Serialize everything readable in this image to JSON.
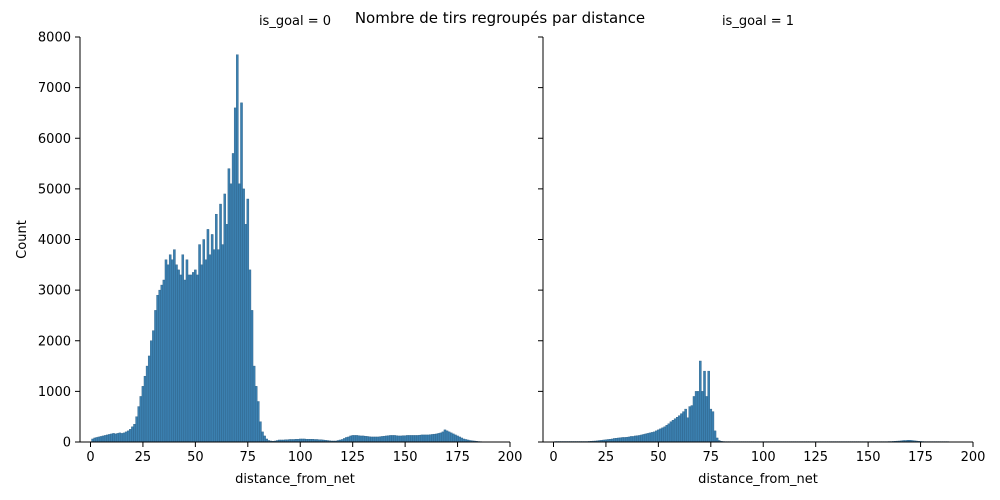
{
  "suptitle": "Nombre de tirs regroupés par distance",
  "colors": {
    "bar_fill": "#3b80b0",
    "bar_edge": "#2c5f86",
    "axis": "#000000"
  },
  "chart_data": [
    {
      "type": "bar",
      "title": "is_goal = 0",
      "xlabel": "distance_from_net",
      "ylabel": "Count",
      "xlim": [
        -5,
        200
      ],
      "ylim": [
        0,
        8000
      ],
      "xticks": [
        "0",
        "25",
        "50",
        "75",
        "100",
        "125",
        "150",
        "175",
        "200"
      ],
      "yticks": [
        "0",
        "1000",
        "2000",
        "3000",
        "4000",
        "5000",
        "6000",
        "7000",
        "8000"
      ],
      "bin_width": 1,
      "points": [
        [
          1,
          60
        ],
        [
          2,
          80
        ],
        [
          3,
          90
        ],
        [
          4,
          100
        ],
        [
          5,
          110
        ],
        [
          6,
          120
        ],
        [
          7,
          130
        ],
        [
          8,
          140
        ],
        [
          9,
          150
        ],
        [
          10,
          160
        ],
        [
          11,
          170
        ],
        [
          12,
          160
        ],
        [
          13,
          170
        ],
        [
          14,
          180
        ],
        [
          15,
          170
        ],
        [
          16,
          180
        ],
        [
          17,
          200
        ],
        [
          18,
          220
        ],
        [
          19,
          250
        ],
        [
          20,
          300
        ],
        [
          21,
          350
        ],
        [
          22,
          500
        ],
        [
          23,
          700
        ],
        [
          24,
          900
        ],
        [
          25,
          1100
        ],
        [
          26,
          1300
        ],
        [
          27,
          1500
        ],
        [
          28,
          1700
        ],
        [
          29,
          2000
        ],
        [
          30,
          2200
        ],
        [
          31,
          2600
        ],
        [
          32,
          2900
        ],
        [
          33,
          3000
        ],
        [
          34,
          3100
        ],
        [
          35,
          3200
        ],
        [
          36,
          3600
        ],
        [
          37,
          3500
        ],
        [
          38,
          3700
        ],
        [
          39,
          3600
        ],
        [
          40,
          3800
        ],
        [
          41,
          3500
        ],
        [
          42,
          3400
        ],
        [
          43,
          3300
        ],
        [
          44,
          3700
        ],
        [
          45,
          3200
        ],
        [
          46,
          3600
        ],
        [
          47,
          3300
        ],
        [
          48,
          3300
        ],
        [
          49,
          3350
        ],
        [
          50,
          3400
        ],
        [
          51,
          3300
        ],
        [
          52,
          3900
        ],
        [
          53,
          3500
        ],
        [
          54,
          4000
        ],
        [
          55,
          3600
        ],
        [
          56,
          4200
        ],
        [
          57,
          3700
        ],
        [
          58,
          4100
        ],
        [
          59,
          3800
        ],
        [
          60,
          4500
        ],
        [
          61,
          3800
        ],
        [
          62,
          4700
        ],
        [
          63,
          3900
        ],
        [
          64,
          4900
        ],
        [
          65,
          4300
        ],
        [
          66,
          5400
        ],
        [
          67,
          5100
        ],
        [
          68,
          5700
        ],
        [
          69,
          6600
        ],
        [
          70,
          7650
        ],
        [
          71,
          5100
        ],
        [
          72,
          6700
        ],
        [
          73,
          5000
        ],
        [
          74,
          4300
        ],
        [
          75,
          4800
        ],
        [
          76,
          3400
        ],
        [
          77,
          2600
        ],
        [
          78,
          1500
        ],
        [
          79,
          1100
        ],
        [
          80,
          800
        ],
        [
          81,
          400
        ],
        [
          82,
          200
        ],
        [
          83,
          120
        ],
        [
          84,
          60
        ],
        [
          85,
          30
        ],
        [
          86,
          20
        ],
        [
          87,
          15
        ],
        [
          88,
          20
        ],
        [
          89,
          30
        ],
        [
          90,
          40
        ],
        [
          91,
          40
        ],
        [
          92,
          40
        ],
        [
          93,
          45
        ],
        [
          94,
          45
        ],
        [
          95,
          50
        ],
        [
          96,
          50
        ],
        [
          97,
          50
        ],
        [
          98,
          55
        ],
        [
          99,
          55
        ],
        [
          100,
          60
        ],
        [
          101,
          60
        ],
        [
          102,
          60
        ],
        [
          103,
          55
        ],
        [
          104,
          55
        ],
        [
          105,
          55
        ],
        [
          106,
          55
        ],
        [
          107,
          50
        ],
        [
          108,
          50
        ],
        [
          109,
          45
        ],
        [
          110,
          45
        ],
        [
          111,
          40
        ],
        [
          112,
          35
        ],
        [
          113,
          30
        ],
        [
          114,
          25
        ],
        [
          115,
          20
        ],
        [
          116,
          20
        ],
        [
          117,
          20
        ],
        [
          118,
          30
        ],
        [
          119,
          40
        ],
        [
          120,
          50
        ],
        [
          121,
          70
        ],
        [
          122,
          90
        ],
        [
          123,
          100
        ],
        [
          124,
          120
        ],
        [
          125,
          130
        ],
        [
          126,
          130
        ],
        [
          127,
          130
        ],
        [
          128,
          125
        ],
        [
          129,
          120
        ],
        [
          130,
          120
        ],
        [
          131,
          115
        ],
        [
          132,
          110
        ],
        [
          133,
          105
        ],
        [
          134,
          100
        ],
        [
          135,
          100
        ],
        [
          136,
          100
        ],
        [
          137,
          100
        ],
        [
          138,
          105
        ],
        [
          139,
          110
        ],
        [
          140,
          115
        ],
        [
          141,
          120
        ],
        [
          142,
          125
        ],
        [
          143,
          130
        ],
        [
          144,
          130
        ],
        [
          145,
          130
        ],
        [
          146,
          125
        ],
        [
          147,
          120
        ],
        [
          148,
          120
        ],
        [
          149,
          125
        ],
        [
          150,
          125
        ],
        [
          151,
          130
        ],
        [
          152,
          130
        ],
        [
          153,
          130
        ],
        [
          154,
          130
        ],
        [
          155,
          130
        ],
        [
          156,
          130
        ],
        [
          157,
          135
        ],
        [
          158,
          140
        ],
        [
          159,
          140
        ],
        [
          160,
          140
        ],
        [
          161,
          140
        ],
        [
          162,
          145
        ],
        [
          163,
          150
        ],
        [
          164,
          155
        ],
        [
          165,
          160
        ],
        [
          166,
          170
        ],
        [
          167,
          180
        ],
        [
          168,
          200
        ],
        [
          169,
          240
        ],
        [
          170,
          220
        ],
        [
          171,
          200
        ],
        [
          172,
          180
        ],
        [
          173,
          160
        ],
        [
          174,
          140
        ],
        [
          175,
          120
        ],
        [
          176,
          100
        ],
        [
          177,
          80
        ],
        [
          178,
          60
        ],
        [
          179,
          50
        ],
        [
          180,
          40
        ],
        [
          181,
          30
        ],
        [
          182,
          25
        ],
        [
          183,
          20
        ],
        [
          184,
          15
        ],
        [
          185,
          10
        ],
        [
          186,
          8
        ],
        [
          187,
          5
        ],
        [
          188,
          3
        ]
      ]
    },
    {
      "type": "bar",
      "title": "is_goal = 1",
      "xlabel": "distance_from_net",
      "ylabel": "",
      "xlim": [
        -5,
        200
      ],
      "ylim": [
        0,
        8000
      ],
      "xticks": [
        "0",
        "25",
        "50",
        "75",
        "100",
        "125",
        "150",
        "175",
        "200"
      ],
      "yticks": [
        "0",
        "1000",
        "2000",
        "3000",
        "4000",
        "5000",
        "6000",
        "7000",
        "8000"
      ],
      "bin_width": 1,
      "points": [
        [
          1,
          10
        ],
        [
          2,
          10
        ],
        [
          3,
          10
        ],
        [
          4,
          10
        ],
        [
          5,
          10
        ],
        [
          6,
          10
        ],
        [
          7,
          10
        ],
        [
          8,
          10
        ],
        [
          9,
          10
        ],
        [
          10,
          10
        ],
        [
          11,
          10
        ],
        [
          12,
          10
        ],
        [
          13,
          10
        ],
        [
          14,
          10
        ],
        [
          15,
          10
        ],
        [
          16,
          10
        ],
        [
          17,
          12
        ],
        [
          18,
          15
        ],
        [
          19,
          18
        ],
        [
          20,
          20
        ],
        [
          21,
          25
        ],
        [
          22,
          30
        ],
        [
          23,
          35
        ],
        [
          24,
          40
        ],
        [
          25,
          45
        ],
        [
          26,
          50
        ],
        [
          27,
          55
        ],
        [
          28,
          60
        ],
        [
          29,
          70
        ],
        [
          30,
          75
        ],
        [
          31,
          80
        ],
        [
          32,
          85
        ],
        [
          33,
          90
        ],
        [
          34,
          90
        ],
        [
          35,
          95
        ],
        [
          36,
          100
        ],
        [
          37,
          110
        ],
        [
          38,
          110
        ],
        [
          39,
          120
        ],
        [
          40,
          125
        ],
        [
          41,
          130
        ],
        [
          42,
          140
        ],
        [
          43,
          150
        ],
        [
          44,
          160
        ],
        [
          45,
          170
        ],
        [
          46,
          180
        ],
        [
          47,
          190
        ],
        [
          48,
          200
        ],
        [
          49,
          220
        ],
        [
          50,
          240
        ],
        [
          51,
          260
        ],
        [
          52,
          280
        ],
        [
          53,
          300
        ],
        [
          54,
          330
        ],
        [
          55,
          360
        ],
        [
          56,
          400
        ],
        [
          57,
          430
        ],
        [
          58,
          460
        ],
        [
          59,
          490
        ],
        [
          60,
          520
        ],
        [
          61,
          560
        ],
        [
          62,
          600
        ],
        [
          63,
          650
        ],
        [
          64,
          480
        ],
        [
          65,
          700
        ],
        [
          66,
          720
        ],
        [
          67,
          900
        ],
        [
          68,
          1000
        ],
        [
          69,
          1000
        ],
        [
          70,
          1600
        ],
        [
          71,
          1000
        ],
        [
          72,
          1400
        ],
        [
          73,
          900
        ],
        [
          74,
          1400
        ],
        [
          75,
          650
        ],
        [
          76,
          600
        ],
        [
          77,
          220
        ],
        [
          78,
          80
        ],
        [
          79,
          30
        ],
        [
          80,
          15
        ],
        [
          81,
          10
        ],
        [
          82,
          8
        ],
        [
          83,
          8
        ],
        [
          84,
          8
        ],
        [
          85,
          8
        ],
        [
          86,
          8
        ],
        [
          87,
          8
        ],
        [
          88,
          8
        ],
        [
          89,
          8
        ],
        [
          90,
          8
        ],
        [
          91,
          8
        ],
        [
          92,
          8
        ],
        [
          93,
          8
        ],
        [
          94,
          8
        ],
        [
          95,
          8
        ],
        [
          96,
          8
        ],
        [
          97,
          8
        ],
        [
          98,
          8
        ],
        [
          99,
          8
        ],
        [
          100,
          8
        ],
        [
          101,
          8
        ],
        [
          102,
          8
        ],
        [
          103,
          8
        ],
        [
          104,
          8
        ],
        [
          105,
          8
        ],
        [
          106,
          8
        ],
        [
          107,
          8
        ],
        [
          108,
          8
        ],
        [
          109,
          8
        ],
        [
          110,
          8
        ],
        [
          111,
          8
        ],
        [
          112,
          8
        ],
        [
          113,
          8
        ],
        [
          114,
          8
        ],
        [
          115,
          8
        ],
        [
          116,
          8
        ],
        [
          117,
          8
        ],
        [
          118,
          8
        ],
        [
          119,
          8
        ],
        [
          120,
          8
        ],
        [
          121,
          8
        ],
        [
          122,
          8
        ],
        [
          123,
          8
        ],
        [
          124,
          8
        ],
        [
          125,
          8
        ],
        [
          126,
          8
        ],
        [
          127,
          8
        ],
        [
          128,
          8
        ],
        [
          129,
          8
        ],
        [
          130,
          8
        ],
        [
          131,
          8
        ],
        [
          132,
          8
        ],
        [
          133,
          8
        ],
        [
          134,
          8
        ],
        [
          135,
          8
        ],
        [
          136,
          8
        ],
        [
          137,
          8
        ],
        [
          138,
          8
        ],
        [
          139,
          8
        ],
        [
          140,
          8
        ],
        [
          141,
          8
        ],
        [
          142,
          8
        ],
        [
          143,
          8
        ],
        [
          144,
          8
        ],
        [
          145,
          8
        ],
        [
          146,
          8
        ],
        [
          147,
          8
        ],
        [
          148,
          8
        ],
        [
          149,
          8
        ],
        [
          150,
          8
        ],
        [
          151,
          8
        ],
        [
          152,
          8
        ],
        [
          153,
          8
        ],
        [
          154,
          8
        ],
        [
          155,
          8
        ],
        [
          156,
          8
        ],
        [
          157,
          8
        ],
        [
          158,
          8
        ],
        [
          159,
          8
        ],
        [
          160,
          10
        ],
        [
          161,
          10
        ],
        [
          162,
          12
        ],
        [
          163,
          15
        ],
        [
          164,
          18
        ],
        [
          165,
          20
        ],
        [
          166,
          25
        ],
        [
          167,
          30
        ],
        [
          168,
          30
        ],
        [
          169,
          35
        ],
        [
          170,
          35
        ],
        [
          171,
          30
        ],
        [
          172,
          25
        ],
        [
          173,
          20
        ],
        [
          174,
          15
        ],
        [
          175,
          12
        ],
        [
          176,
          10
        ],
        [
          177,
          8
        ],
        [
          178,
          8
        ],
        [
          179,
          8
        ],
        [
          180,
          8
        ],
        [
          181,
          8
        ],
        [
          182,
          8
        ],
        [
          183,
          8
        ],
        [
          184,
          8
        ],
        [
          185,
          8
        ],
        [
          186,
          8
        ],
        [
          187,
          8
        ],
        [
          188,
          8
        ]
      ]
    }
  ]
}
